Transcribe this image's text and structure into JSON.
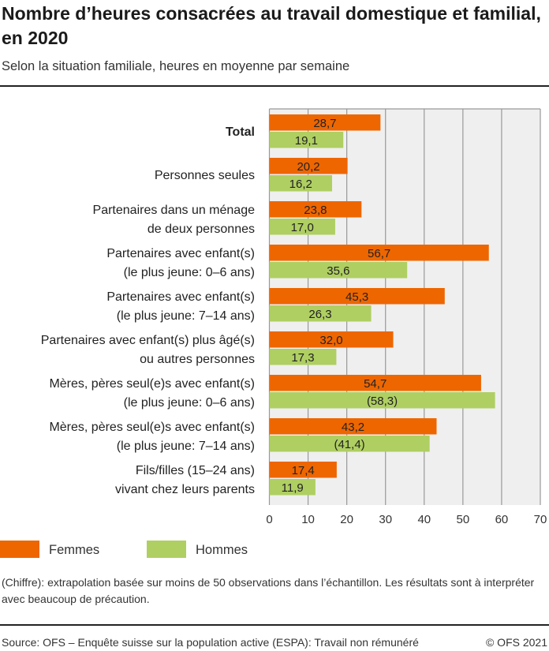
{
  "title": "Nombre d’heures consacrées au travail domestique et familial, en 2020",
  "subtitle": "Selon la situation familiale, heures en moyenne par semaine",
  "note": "(Chiffre): extrapolation basée sur moins de 50 observations dans l’échantillon. Les résultats sont à interpréter avec beaucoup de précaution.",
  "source": "Source: OFS – Enquête suisse sur la population active (ESPA): Travail non rémunéré",
  "copyright": "© OFS 2021",
  "chart_data": {
    "type": "bar",
    "orientation": "horizontal",
    "categories": [
      [
        "Total"
      ],
      [
        "Personnes seules"
      ],
      [
        "Partenaires dans un ménage",
        "de deux personnes"
      ],
      [
        "Partenaires avec enfant(s)",
        "(le plus jeune: 0–6 ans)"
      ],
      [
        "Partenaires avec enfant(s)",
        "(le plus jeune: 7–14 ans)"
      ],
      [
        "Partenaires avec enfant(s) plus âgé(s)",
        "ou autres personnes"
      ],
      [
        "Mères, pères seul(e)s avec enfant(s)",
        "(le plus jeune: 0–6 ans)"
      ],
      [
        "Mères, pères seul(e)s avec enfant(s)",
        "(le plus jeune: 7–14 ans)"
      ],
      [
        "Fils/filles (15–24 ans)",
        "vivant chez leurs parents"
      ]
    ],
    "series": [
      {
        "name": "Femmes",
        "color": "#ee6600",
        "values": [
          28.7,
          20.2,
          23.8,
          56.7,
          45.3,
          32.0,
          54.7,
          43.2,
          17.4
        ],
        "labels": [
          "28,7",
          "20,2",
          "23,8",
          "56,7",
          "45,3",
          "32,0",
          "54,7",
          "43,2",
          "17,4"
        ]
      },
      {
        "name": "Hommes",
        "color": "#afcf62",
        "values": [
          19.1,
          16.2,
          17.0,
          35.6,
          26.3,
          17.3,
          58.3,
          41.4,
          11.9
        ],
        "labels": [
          "19,1",
          "16,2",
          "17,0",
          "35,6",
          "26,3",
          "17,3",
          "(58,3)",
          "(41,4)",
          "11,9"
        ]
      }
    ],
    "xlim": [
      0,
      70
    ],
    "xticks": [
      "0",
      "10",
      "20",
      "30",
      "40",
      "50",
      "60",
      "70"
    ],
    "grid": true,
    "legend": "bottom-left",
    "plot_background": "#efefef"
  }
}
